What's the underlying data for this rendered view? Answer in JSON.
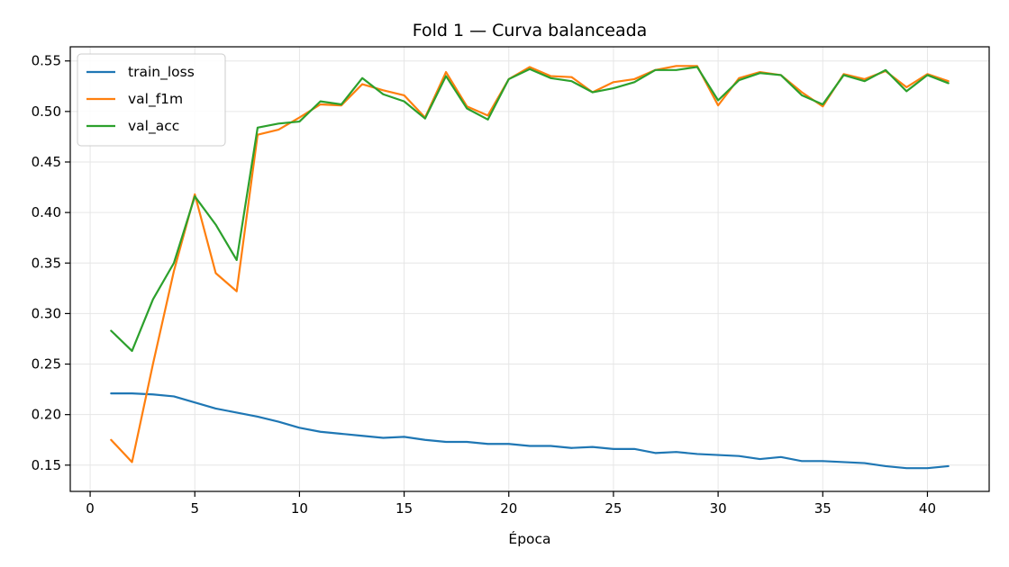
{
  "chart_data": {
    "type": "line",
    "title": "Fold 1 — Curva balanceada",
    "xlabel": "Época",
    "ylabel": "",
    "xlim": [
      -0.95,
      42.95
    ],
    "ylim": [
      0.124,
      0.564
    ],
    "xticks": [
      0,
      5,
      10,
      15,
      20,
      25,
      30,
      35,
      40
    ],
    "yticks": [
      0.15,
      0.2,
      0.25,
      0.3,
      0.35,
      0.4,
      0.45,
      0.5,
      0.55
    ],
    "grid": true,
    "legend": "top-left",
    "x": [
      1,
      2,
      3,
      4,
      5,
      6,
      7,
      8,
      9,
      10,
      11,
      12,
      13,
      14,
      15,
      16,
      17,
      18,
      19,
      20,
      21,
      22,
      23,
      24,
      25,
      26,
      27,
      28,
      29,
      30,
      31,
      32,
      33,
      34,
      35,
      36,
      37,
      38,
      39,
      40,
      41
    ],
    "series": [
      {
        "name": "train_loss",
        "color": "#1f77b4",
        "values": [
          0.221,
          0.221,
          0.22,
          0.218,
          0.212,
          0.206,
          0.202,
          0.198,
          0.193,
          0.187,
          0.183,
          0.181,
          0.179,
          0.177,
          0.178,
          0.175,
          0.173,
          0.173,
          0.171,
          0.171,
          0.169,
          0.169,
          0.167,
          0.168,
          0.166,
          0.166,
          0.162,
          0.163,
          0.161,
          0.16,
          0.159,
          0.156,
          0.158,
          0.154,
          0.154,
          0.153,
          0.152,
          0.149,
          0.147,
          0.147,
          0.149
        ]
      },
      {
        "name": "val_f1m",
        "color": "#ff7f0e",
        "values": [
          0.175,
          0.153,
          0.25,
          0.342,
          0.418,
          0.34,
          0.322,
          0.477,
          0.482,
          0.494,
          0.507,
          0.506,
          0.527,
          0.521,
          0.516,
          0.494,
          0.539,
          0.505,
          0.496,
          0.532,
          0.544,
          0.535,
          0.534,
          0.519,
          0.529,
          0.532,
          0.541,
          0.545,
          0.545,
          0.506,
          0.533,
          0.539,
          0.536,
          0.519,
          0.505,
          0.537,
          0.532,
          0.54,
          0.524,
          0.537,
          0.53
        ]
      },
      {
        "name": "val_acc",
        "color": "#2ca02c",
        "values": [
          0.283,
          0.263,
          0.314,
          0.35,
          0.416,
          0.388,
          0.353,
          0.484,
          0.488,
          0.49,
          0.51,
          0.507,
          0.533,
          0.517,
          0.51,
          0.493,
          0.535,
          0.503,
          0.492,
          0.532,
          0.542,
          0.533,
          0.53,
          0.519,
          0.523,
          0.529,
          0.541,
          0.541,
          0.544,
          0.511,
          0.531,
          0.538,
          0.536,
          0.516,
          0.507,
          0.536,
          0.53,
          0.541,
          0.52,
          0.536,
          0.528
        ]
      }
    ]
  }
}
